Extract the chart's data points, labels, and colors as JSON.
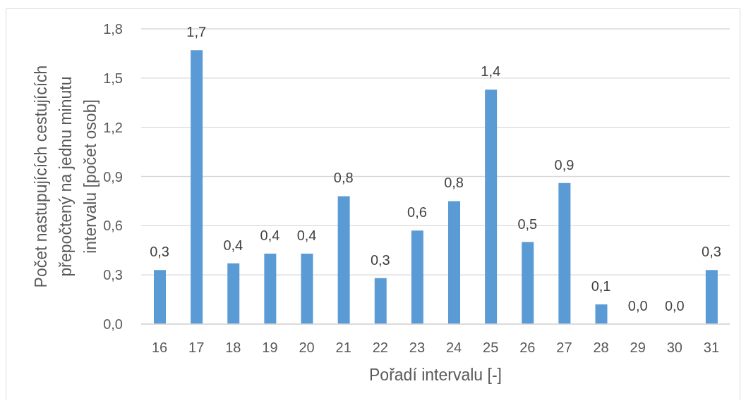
{
  "chart_data": {
    "type": "bar",
    "xlabel": "Pořadí intervalu [-]",
    "ylabel": "Počet nastupujících cestujících přepočtený na jednu minutu intervalu [počet osob]",
    "categories": [
      "16",
      "17",
      "18",
      "19",
      "20",
      "21",
      "22",
      "23",
      "24",
      "25",
      "26",
      "27",
      "28",
      "29",
      "30",
      "31"
    ],
    "values": [
      0.33,
      1.67,
      0.37,
      0.43,
      0.43,
      0.78,
      0.28,
      0.57,
      0.75,
      1.43,
      0.5,
      0.86,
      0.12,
      0,
      0,
      0.33
    ],
    "value_labels": [
      "0,3",
      "1,7",
      "0,4",
      "0,4",
      "0,4",
      "0,8",
      "0,3",
      "0,6",
      "0,8",
      "1,4",
      "0,5",
      "0,9",
      "0,1",
      "0,0",
      "0,0",
      "0,3"
    ],
    "color": "#5b9bd5",
    "ylim": [
      0,
      1.8
    ],
    "yticks": [
      {
        "value": 0,
        "label": "0,0"
      },
      {
        "value": 0.3,
        "label": "0,3"
      },
      {
        "value": 0.6,
        "label": "0,6"
      },
      {
        "value": 0.9,
        "label": "0,9"
      },
      {
        "value": 1.2,
        "label": "1,2"
      },
      {
        "value": 1.5,
        "label": "1,5"
      },
      {
        "value": 1.8,
        "label": "1,8"
      }
    ],
    "grid": "y"
  }
}
